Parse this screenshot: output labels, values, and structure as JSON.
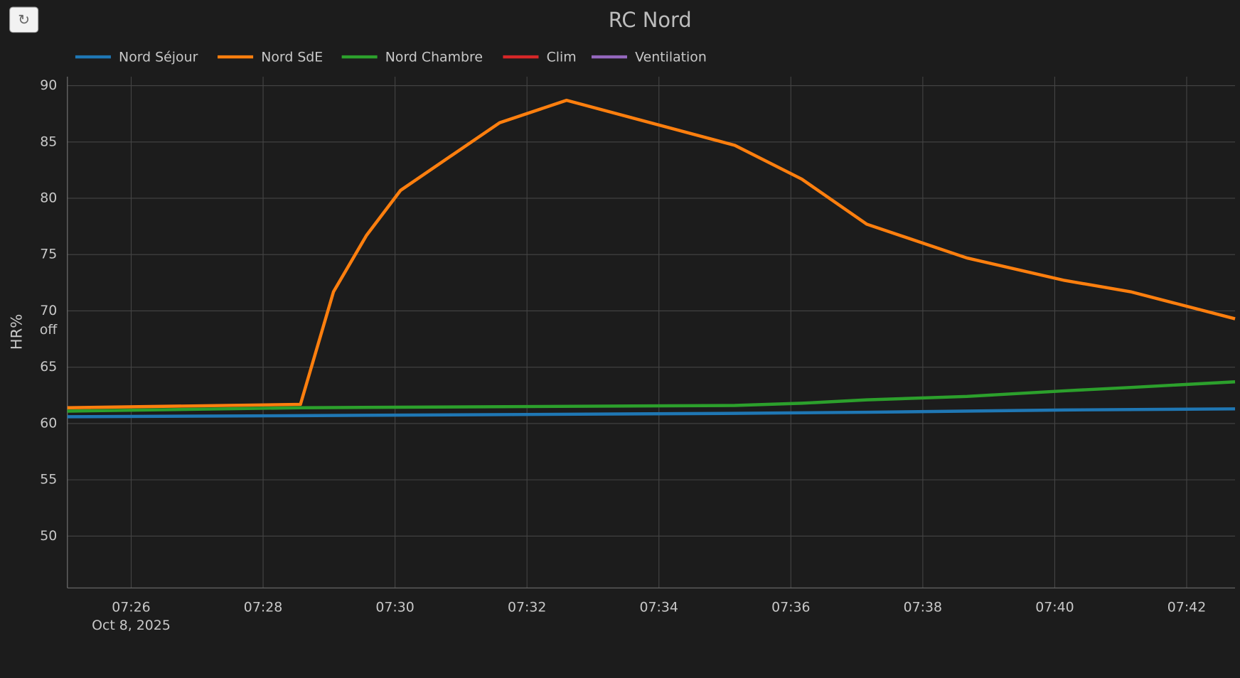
{
  "refresh_button": "↻",
  "chart_data": {
    "type": "line",
    "title": "RC Nord",
    "y_label": "HR%",
    "x_date_label": "Oct 8, 2025",
    "xlim": [
      "2025-10-08 07:25:02",
      "2025-10-08 07:42:44"
    ],
    "xticks": [
      {
        "value": "2025-10-08 07:26:00",
        "label": "07:26"
      },
      {
        "value": "2025-10-08 07:28:00",
        "label": "07:28"
      },
      {
        "value": "2025-10-08 07:30:00",
        "label": "07:30"
      },
      {
        "value": "2025-10-08 07:32:00",
        "label": "07:32"
      },
      {
        "value": "2025-10-08 07:34:00",
        "label": "07:34"
      },
      {
        "value": "2025-10-08 07:36:00",
        "label": "07:36"
      },
      {
        "value": "2025-10-08 07:38:00",
        "label": "07:38"
      },
      {
        "value": "2025-10-08 07:40:00",
        "label": "07:40"
      },
      {
        "value": "2025-10-08 07:42:00",
        "label": "07:42"
      }
    ],
    "ylim": [
      45.4,
      90.8
    ],
    "yticks": [
      50,
      55,
      60,
      65,
      {
        "value": 68.3,
        "label": "off"
      },
      70,
      75,
      80,
      85,
      90
    ],
    "grid": true,
    "series": [
      {
        "name": "Nord Séjour",
        "color": "#1f77b4",
        "x": [
          "2025-10-08 07:25:02",
          "2025-10-08 07:28:34",
          "2025-10-08 07:35:09",
          "2025-10-08 07:37:09",
          "2025-10-08 07:40:09",
          "2025-10-08 07:42:44"
        ],
        "values": [
          60.6,
          60.7,
          60.9,
          61.0,
          61.2,
          61.3
        ]
      },
      {
        "name": "Nord SdE",
        "color": "#ff7f0e",
        "x": [
          "2025-10-08 07:25:02",
          "2025-10-08 07:28:34",
          "2025-10-08 07:29:04",
          "2025-10-08 07:29:34",
          "2025-10-08 07:30:05",
          "2025-10-08 07:31:35",
          "2025-10-08 07:32:36",
          "2025-10-08 07:35:09",
          "2025-10-08 07:36:10",
          "2025-10-08 07:37:09",
          "2025-10-08 07:38:40",
          "2025-10-08 07:40:09",
          "2025-10-08 07:41:09",
          "2025-10-08 07:42:44"
        ],
        "values": [
          61.4,
          61.7,
          71.7,
          76.7,
          80.7,
          86.7,
          88.7,
          84.7,
          81.7,
          77.7,
          74.7,
          72.7,
          71.7,
          69.3
        ]
      },
      {
        "name": "Nord Chambre",
        "color": "#2ca02c",
        "x": [
          "2025-10-08 07:25:02",
          "2025-10-08 07:28:34",
          "2025-10-08 07:35:09",
          "2025-10-08 07:36:10",
          "2025-10-08 07:37:09",
          "2025-10-08 07:38:40",
          "2025-10-08 07:40:09",
          "2025-10-08 07:41:09",
          "2025-10-08 07:42:44"
        ],
        "values": [
          61.1,
          61.4,
          61.6,
          61.8,
          62.1,
          62.4,
          62.9,
          63.2,
          63.7
        ]
      },
      {
        "name": "Clim",
        "color": "#d62728",
        "x": [],
        "values": []
      },
      {
        "name": "Ventilation",
        "color": "#9467bd",
        "x": [],
        "values": []
      }
    ]
  }
}
